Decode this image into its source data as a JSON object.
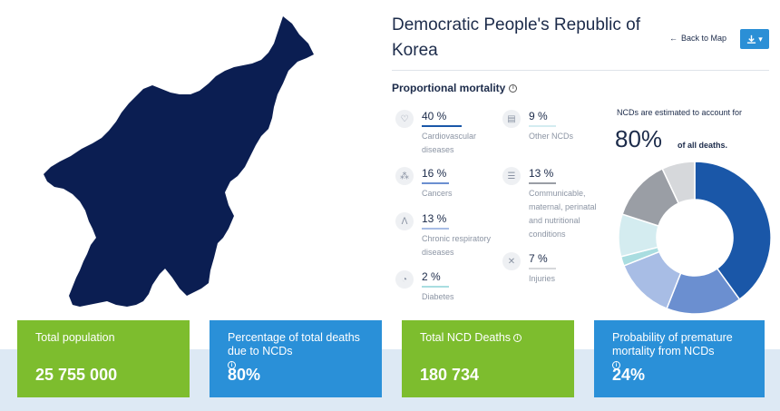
{
  "country": {
    "title": "Democratic People's Republic of Korea",
    "map_color": "#0b1e52"
  },
  "header": {
    "back_label": "Back to Map",
    "back_icon": "arrow-left-icon",
    "download_icon": "download-icon",
    "accent": "#2b8fd6"
  },
  "proportional_mortality": {
    "title": "Proportional mortality",
    "items": [
      {
        "value": "40 %",
        "label": "Cardiovascular diseases",
        "icon": "heart-icon",
        "color": "#1a57a8"
      },
      {
        "value": "16 %",
        "label": "Cancers",
        "icon": "cells-icon",
        "color": "#6b8fd0"
      },
      {
        "value": "13 %",
        "label": "Chronic respiratory diseases",
        "icon": "lungs-icon",
        "color": "#a8bde5"
      },
      {
        "value": "2 %",
        "label": "Diabetes",
        "icon": "glucose-meter-icon",
        "color": "#a9dde0"
      },
      {
        "value": "9 %",
        "label": "Other NCDs",
        "icon": "clipboard-icon",
        "color": "#d4ecf0"
      },
      {
        "value": "13 %",
        "label": "Communicable, maternal, perinatal and nutritional conditions",
        "icon": "bed-icon",
        "color": "#9a9ea5"
      },
      {
        "value": "7 %",
        "label": "Injuries",
        "icon": "bandage-icon",
        "color": "#d6d8db"
      }
    ]
  },
  "ncd_summary": {
    "caption": "NCDs are estimated to account for",
    "value": "80%",
    "suffix": "of all deaths."
  },
  "chart_data": {
    "type": "pie",
    "categories": [
      "Cardiovascular diseases",
      "Cancers",
      "Chronic respiratory diseases",
      "Diabetes",
      "Other NCDs",
      "Communicable, maternal, perinatal and nutritional conditions",
      "Injuries"
    ],
    "values": [
      40,
      16,
      13,
      2,
      9,
      13,
      7
    ],
    "colors": [
      "#1a57a8",
      "#6b8fd0",
      "#a8bde5",
      "#a9dde0",
      "#d4ecf0",
      "#9a9ea5",
      "#d6d8db"
    ]
  },
  "cards": [
    {
      "label": "Total population",
      "value": "25 755 000",
      "info": false,
      "color": "#7dbd2e"
    },
    {
      "label": "Percentage of total deaths due to NCDs",
      "value": "80%",
      "info": true,
      "color": "#2a90d8"
    },
    {
      "label": "Total NCD Deaths",
      "value": "180 734",
      "info": true,
      "color": "#7dbd2e"
    },
    {
      "label": "Probability of premature mortality from NCDs",
      "value": "24%",
      "info": true,
      "color": "#2a90d8"
    }
  ]
}
